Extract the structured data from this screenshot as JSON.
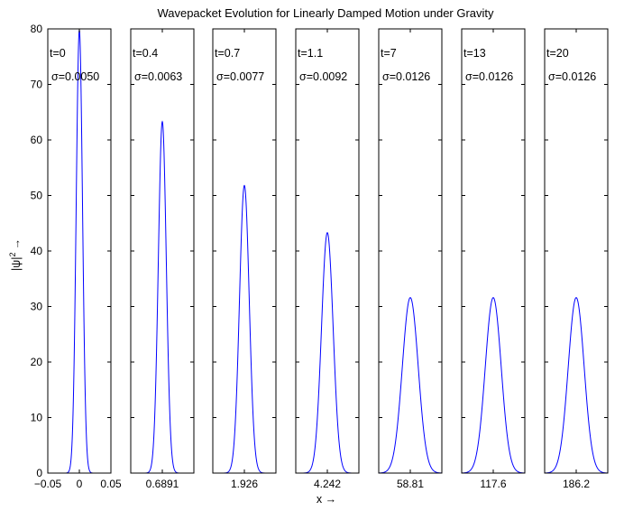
{
  "chart_data": {
    "type": "line",
    "title": "Wavepacket Evolution for Linearly Damped Motion under Gravity",
    "xlabel": "x →",
    "ylabel_base": "|ψ|",
    "ylabel_sup": "2",
    "ylabel_arrow": "→",
    "ylim": [
      0,
      80
    ],
    "yticks": [
      0,
      10,
      20,
      30,
      40,
      50,
      60,
      70,
      80
    ],
    "line_color": "#0000ff",
    "panels": [
      {
        "t_label": "t=0",
        "sigma_label": "σ=0.0050",
        "center": 0,
        "sigma": 0.005,
        "peak": 79.8,
        "xlim": [
          -0.05,
          0.05
        ],
        "xticks": [
          "−0.05",
          "0",
          "0.05"
        ]
      },
      {
        "t_label": "t=0.4",
        "sigma_label": "σ=0.0063",
        "center": 0.6891,
        "sigma": 0.0063,
        "peak": 63.3,
        "xlim": [
          0.6391,
          0.7391
        ],
        "xticks": [
          "0.6891"
        ]
      },
      {
        "t_label": "t=0.7",
        "sigma_label": "σ=0.0077",
        "center": 1.926,
        "sigma": 0.0077,
        "peak": 51.8,
        "xlim": [
          1.876,
          1.976
        ],
        "xticks": [
          "1.926"
        ]
      },
      {
        "t_label": "t=1.1",
        "sigma_label": "σ=0.0092",
        "center": 4.242,
        "sigma": 0.0092,
        "peak": 43.3,
        "xlim": [
          4.192,
          4.292
        ],
        "xticks": [
          "4.242"
        ]
      },
      {
        "t_label": "t=7",
        "sigma_label": "σ=0.0126",
        "center": 58.81,
        "sigma": 0.0126,
        "peak": 31.6,
        "xlim": [
          58.76,
          58.86
        ],
        "xticks": [
          "58.81"
        ]
      },
      {
        "t_label": "t=13",
        "sigma_label": "σ=0.0126",
        "center": 117.6,
        "sigma": 0.0126,
        "peak": 31.6,
        "xlim": [
          117.55,
          117.65
        ],
        "xticks": [
          "117.6"
        ]
      },
      {
        "t_label": "t=20",
        "sigma_label": "σ=0.0126",
        "center": 186.2,
        "sigma": 0.0126,
        "peak": 31.6,
        "xlim": [
          186.15,
          186.25
        ],
        "xticks": [
          "186.2"
        ]
      }
    ]
  }
}
